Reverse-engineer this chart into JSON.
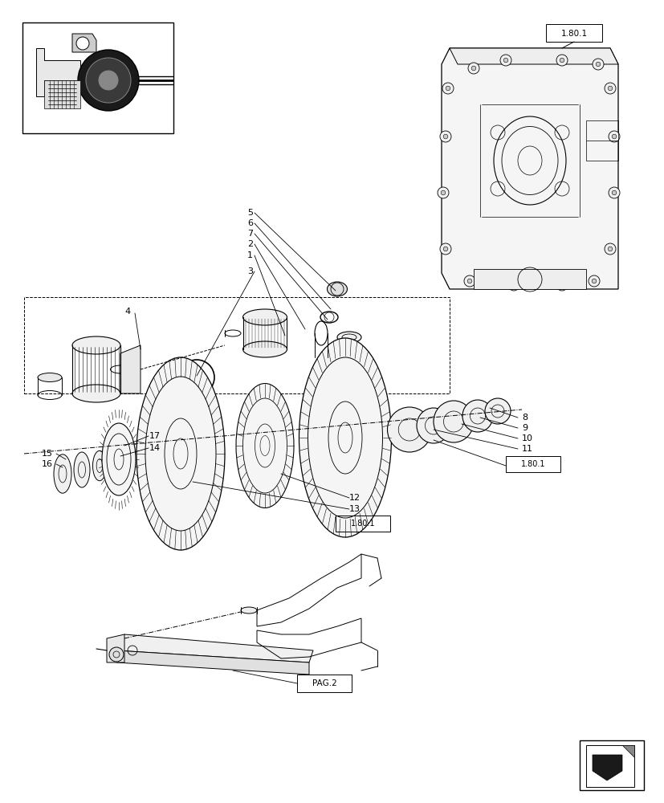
{
  "bg_color": "#ffffff",
  "lc": "#000000",
  "fig_w": 8.28,
  "fig_h": 10.0,
  "dpi": 100
}
